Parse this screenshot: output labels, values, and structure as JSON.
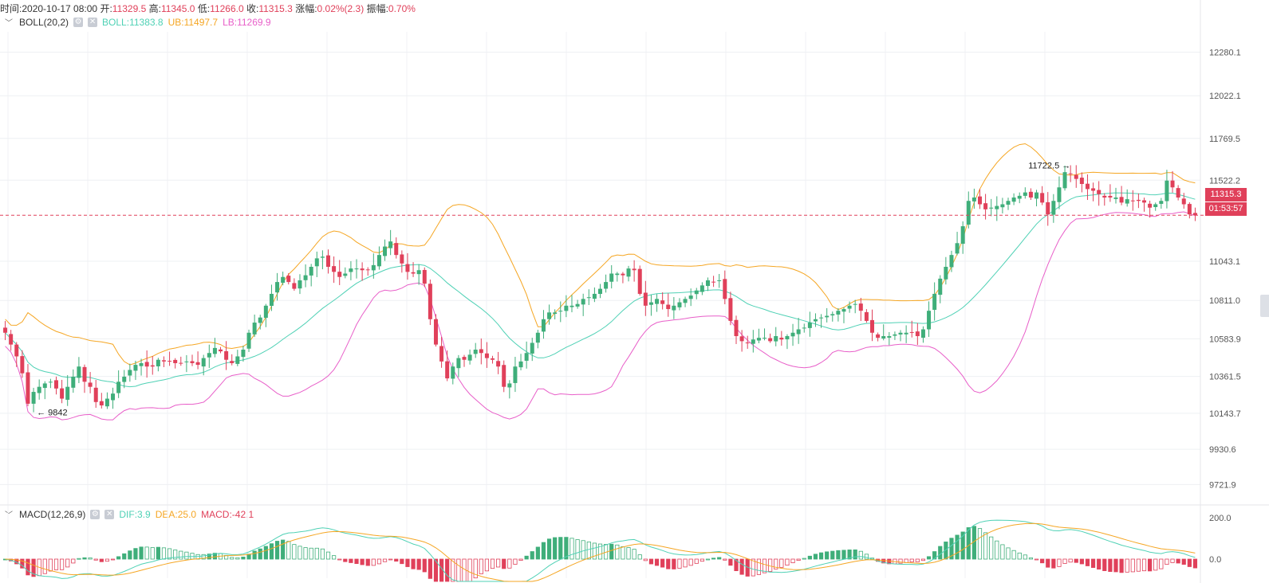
{
  "info_bar": {
    "time_label": "时间:",
    "time": "2020-10-17 08:00",
    "open_label": "开:",
    "open": "11329.5",
    "high_label": "高:",
    "high": "11345.0",
    "low_label": "低:",
    "low": "11266.0",
    "close_label": "收:",
    "close": "11315.3",
    "change_label": "涨幅:",
    "change": "0.02%(2.3)",
    "amp_label": "振幅:",
    "amp": "0.70%"
  },
  "boll": {
    "name": "BOLL(20,2)",
    "boll_label": "BOLL:11383.8",
    "ub_label": "UB:11497.7",
    "lb_label": "LB:11269.9",
    "settings_icon": "gear-icon",
    "close_icon": "close-icon",
    "colors": {
      "mid": "#4fd1b5",
      "ub": "#f5a623",
      "lb": "#e85fc9"
    }
  },
  "macd": {
    "name": "MACD(12,26,9)",
    "dif_label": "DIF:3.9",
    "dea_label": "DEA:25.0",
    "macd_label": "MACD:-42.1",
    "settings_icon": "gear-icon",
    "close_icon": "close-icon",
    "colors": {
      "dif": "#4fd1b5",
      "dea": "#f5a623",
      "up": "#3fae7a",
      "down": "#e0405a"
    }
  },
  "price_axis": [
    "12280.1",
    "12022.1",
    "11769.5",
    "11522.2",
    "11043.1",
    "10811.0",
    "10583.9",
    "10361.5",
    "10143.7",
    "9930.6",
    "9721.9"
  ],
  "macd_axis": [
    "200.0",
    "0.0"
  ],
  "current_price_tag": "11315.3",
  "countdown_tag": "01:53:57",
  "high_marker": "11722.5",
  "low_marker": "9842",
  "colors": {
    "up": "#3fae7a",
    "down": "#e0405a",
    "grid": "#eef0f3",
    "dashed": "#e0405a"
  },
  "chart_data": {
    "type": "candlestick",
    "y_range": [
      9620,
      12400
    ],
    "last_candle": {
      "time": "2020-10-17 08:00",
      "open": 11329.5,
      "high": 11345.0,
      "low": 11266.0,
      "close": 11315.3
    },
    "closes": [
      10620,
      10550,
      10480,
      10380,
      10200,
      10270,
      10300,
      10320,
      10330,
      10290,
      10230,
      10300,
      10360,
      10420,
      10330,
      10300,
      10210,
      10190,
      10230,
      10260,
      10330,
      10360,
      10400,
      10430,
      10440,
      10420,
      10420,
      10460,
      10450,
      10450,
      10440,
      10440,
      10450,
      10440,
      10430,
      10470,
      10500,
      10530,
      10510,
      10460,
      10440,
      10480,
      10520,
      10620,
      10680,
      10710,
      10780,
      10850,
      10920,
      10950,
      10920,
      10880,
      10930,
      10960,
      11010,
      11060,
      11070,
      11010,
      10980,
      10950,
      10970,
      11000,
      11000,
      10990,
      10990,
      11020,
      11080,
      11130,
      11160,
      11080,
      11030,
      10980,
      10970,
      10990,
      10910,
      10700,
      10550,
      10450,
      10350,
      10420,
      10470,
      10460,
      10490,
      10520,
      10500,
      10470,
      10460,
      10420,
      10300,
      10320,
      10420,
      10450,
      10500,
      10560,
      10620,
      10700,
      10740,
      10740,
      10750,
      10780,
      10780,
      10790,
      10820,
      10830,
      10850,
      10880,
      10920,
      10970,
      10970,
      10960,
      11000,
      10990,
      10850,
      10780,
      10800,
      10820,
      10790,
      10760,
      10780,
      10800,
      10820,
      10840,
      10870,
      10900,
      10930,
      10920,
      10930,
      10820,
      10690,
      10600,
      10570,
      10560,
      10580,
      10590,
      10590,
      10570,
      10600,
      10580,
      10600,
      10620,
      10640,
      10650,
      10680,
      10700,
      10710,
      10720,
      10730,
      10750,
      10760,
      10780,
      10790,
      10750,
      10690,
      10620,
      10590,
      10600,
      10600,
      10610,
      10620,
      10620,
      10620,
      10600,
      10640,
      10750,
      10850,
      10940,
      11010,
      11080,
      11150,
      11250,
      11400,
      11420,
      11380,
      11350,
      11360,
      11370,
      11380,
      11400,
      11420,
      11430,
      11450,
      11420,
      11450,
      11390,
      11320,
      11400,
      11480,
      11570,
      11560,
      11530,
      11500,
      11470,
      11460,
      11440,
      11420,
      11420,
      11420,
      11390,
      11410,
      11400,
      11400,
      11390,
      11360,
      11380,
      11400,
      11520,
      11480,
      11420,
      11380,
      11320,
      11315
    ]
  }
}
